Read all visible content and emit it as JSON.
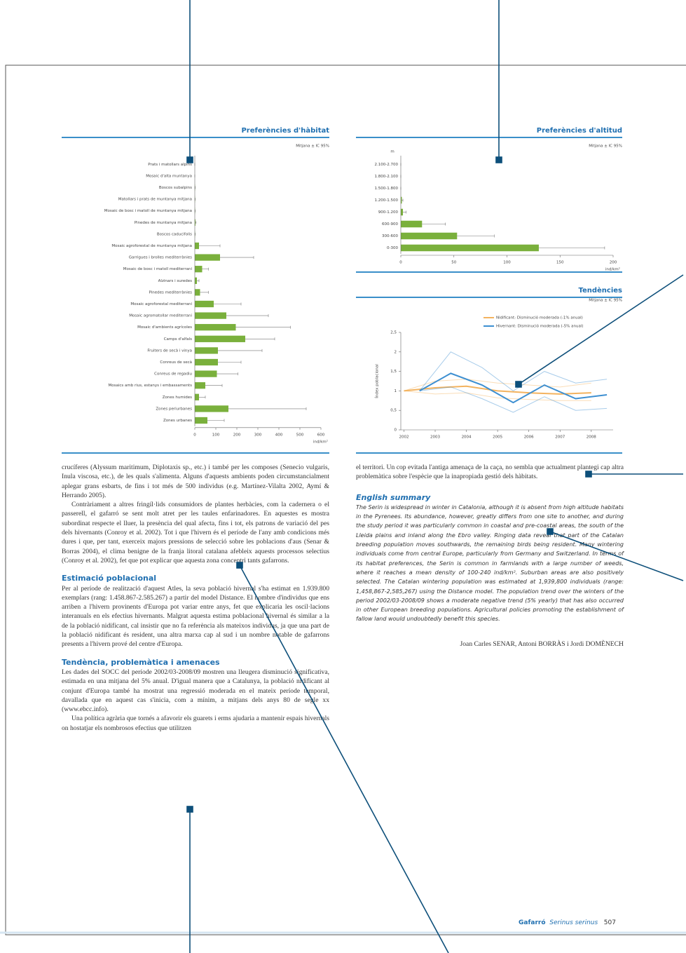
{
  "chart_data": [
    {
      "type": "barh",
      "title": "Preferències d'hàbitat",
      "subtitle": "Mitjana ± IC 95%",
      "xlabel": "ind/km²",
      "color": "#7ab03c",
      "categories": [
        "Prats i matollars alpins",
        "Mosaic d'alta muntanya",
        "Boscos subalpins",
        "Matollars i prats de muntanya mitjana",
        "Mosaic de bosc i matoll de muntanya mitjana",
        "Pinedes de muntanya mitjana",
        "Boscos caducifolis",
        "Mosaic agroforestal de muntanya mitjana",
        "Garrigues i brolles mediterrànies",
        "Mosaic de bosc i matoll mediterrani",
        "Alzinars i suredes",
        "Pinedes mediterrànies",
        "Mosaic agroforestal mediterrani",
        "Mosaic agromatollar mediterrani",
        "Mosaic d'ambients agrícoles",
        "Camps d'alfals",
        "Fruiters de secà i vinya",
        "Conreus de secà",
        "Conreus de regadiu",
        "Mosaics amb rius, estanys i embassaments",
        "Zones humides",
        "Zones periurbanes",
        "Zones urbanes"
      ],
      "values": [
        0,
        0,
        1,
        1,
        1,
        3,
        1,
        20,
        120,
        35,
        10,
        25,
        90,
        150,
        195,
        240,
        110,
        110,
        105,
        50,
        20,
        160,
        60
      ],
      "errors": [
        0,
        0,
        1,
        1,
        1,
        3,
        1,
        100,
        160,
        30,
        10,
        40,
        130,
        200,
        260,
        140,
        210,
        110,
        100,
        80,
        30,
        370,
        80
      ],
      "xlim": [
        0,
        600
      ],
      "xticks": [
        0,
        100,
        200,
        300,
        400,
        500,
        600
      ]
    },
    {
      "type": "barh",
      "title": "Preferències d'altitud",
      "subtitle": "Mitjana ± IC 95%",
      "ylabel": "m",
      "xlabel": "ind/km²",
      "color": "#7ab03c",
      "categories": [
        "2.100-2.700",
        "1.800-2.100",
        "1.500-1.800",
        "1.200-1.500",
        "900-1.200",
        "600-900",
        "300-600",
        "0-300"
      ],
      "values": [
        0,
        0,
        0,
        1,
        2,
        20,
        53,
        130
      ],
      "errors": [
        0,
        0,
        0,
        1,
        3,
        22,
        35,
        62
      ],
      "xlim": [
        0,
        200
      ],
      "xticks": [
        0,
        50,
        100,
        150,
        200
      ]
    },
    {
      "type": "line",
      "title": "Tendències",
      "subtitle": "Mitjana ± IC 95%",
      "ylabel": "Índex poblacional",
      "series": [
        {
          "name": "Nidificant: Disminució moderada (-1% anual)",
          "color": "#f3b35f",
          "x": [
            2002,
            2003,
            2004,
            2005,
            2006,
            2007,
            2008
          ],
          "values": [
            1.0,
            1.08,
            1.12,
            1.0,
            0.95,
            0.92,
            0.95
          ],
          "upper": [
            1.0,
            1.25,
            1.3,
            1.2,
            1.15,
            1.1,
            1.2
          ],
          "lower": [
            1.0,
            0.92,
            0.95,
            0.82,
            0.78,
            0.75,
            0.75
          ]
        },
        {
          "name": "Hivernant: Disminució moderada (-5% anual)",
          "color": "#3d8fd1",
          "x": [
            2002.5,
            2003.5,
            2004.5,
            2005.5,
            2006.5,
            2007.5,
            2008.5
          ],
          "values": [
            1.0,
            1.45,
            1.15,
            0.7,
            1.15,
            0.8,
            0.9
          ],
          "upper": [
            1.0,
            2.0,
            1.6,
            1.0,
            1.5,
            1.2,
            1.3
          ],
          "lower": [
            1.0,
            1.1,
            0.8,
            0.45,
            0.85,
            0.5,
            0.55
          ]
        }
      ],
      "xlim": [
        2001.9,
        2008.7
      ],
      "xticks": [
        2002,
        2003,
        2004,
        2005,
        2006,
        2007,
        2008
      ],
      "ylim": [
        0,
        2.5
      ],
      "yticks": [
        0,
        {
          "value": 0.5,
          "label": "0,5"
        },
        1,
        {
          "value": 1.5,
          "label": "1,5"
        },
        2,
        {
          "value": 2.5,
          "label": "2,5"
        }
      ]
    }
  ],
  "text": {
    "left": [
      "crucíferes (Alyssum maritimum, Diplotaxis sp., etc.) i també per les composes (Senecio vulgaris, Inula viscosa, etc.), de les quals s'alimenta. Alguns d'aquests ambients poden circumstancialment aplegar grans esbarts, de fins i tot més de 500 individus (e.g. Martínez-Vilalta 2002, Aymí & Herrando 2005).",
      "Contràriament a altres fringíl·lids consumidors de plantes herbàcies, com la cadernera o el passerell, el gafarró se sent molt atret per les taules enfarinadores. En aquestes es mostra subordinat respecte el lluer, la presència del qual afecta, fins i tot, els patrons de variació del pes dels hivernants (Conroy et al. 2002). Tot i que l'hivern és el període de l'any amb condicions més dures i que, per tant, exerceix majors pressions de selecció sobre les poblacions d'aus (Senar & Borras 2004), el clima benigne de la franja litoral catalana afebleix aquests processos selectius (Conroy et al. 2002), fet que pot explicar que aquesta zona concentri tants gafarrons."
    ],
    "h_estim": "Estimació poblacional",
    "estim": "Per al període de realització d'aquest Atles, la seva població hivernal s'ha estimat en 1.939.800 exemplars (rang: 1.458.867-2.585.267) a partir del model Distance. El nombre d'individus que ens arriben a l'hivern provinents d'Europa pot variar entre anys, fet que explicaria les oscil·lacions interanuals en els efectius hivernants. Malgrat aquesta estima poblacional hivernal és similar a la de la població nidificant, cal insistir que no fa referència als mateixos individus, ja que una part de la població nidificant és resident, una altra marxa cap al sud i un nombre notable de gafarrons presents a l'hivern prové del centre d'Europa.",
    "h_tend": "Tendència, problemàtica i amenaces",
    "tend": [
      "Les dades del SOCC del període 2002/03-2008/09 mostren una lleugera disminució significativa, estimada en una mitjana del 5% anual. D'igual manera que a Catalunya, la població nidificant al conjunt d'Europa també ha mostrat una regressió moderada en el mateix període temporal, davallada que en aquest cas s'inicia, com a mínim, a mitjans dels anys 80 de segle xx (www.ebcc.info).",
      "Una política agrària que tornés a afavorir els guarets i erms ajudaria a mantenir espais hivernals on hostatjar els nombrosos efectius que utilitzen"
    ],
    "right": "el territori. Un cop evitada l'antiga amenaça de la caça, no sembla que actualment plantegi cap altra problemàtica sobre l'espècie que la inapropiada gestió dels hàbitats.",
    "h_en": "English summary",
    "en": "The Serin is widespread in winter in Catalonia, although it is absent from high altitude habitats in the Pyrenees. Its abundance, however, greatly differs from one site to another, and during the study period it was particularly common in coastal and pre-coastal areas, the south of the Lleida plains and inland along the Ebro valley. Ringing data reveal that part of the Catalan breeding population moves southwards, the remaining birds being resident. Many wintering individuals come from central Europe, particularly from Germany and Switzerland. In terms of its habitat preferences, the Serin is common in farmlands with a large number of weeds, where it reaches a mean density of 100-240 ind/km². Suburban areas are also positively selected. The Catalan wintering population was estimated at 1,939,800 individuals (range: 1,458,867-2,585,267) using the Distance model. The population trend over the winters of the period 2002/03-2008/09 shows a moderate negative trend (5% yearly) that has also occurred in other European breeding populations. Agricultural policies promoting the establishment of fallow land would undoubtedly benefit this species.",
    "authors": "Joan Carles SENAR, Antoni BORRÀS i Jordi DOMÈNECH",
    "footer": {
      "species": "Gafarró",
      "latin": "Serinus serinus",
      "page": "507"
    }
  }
}
